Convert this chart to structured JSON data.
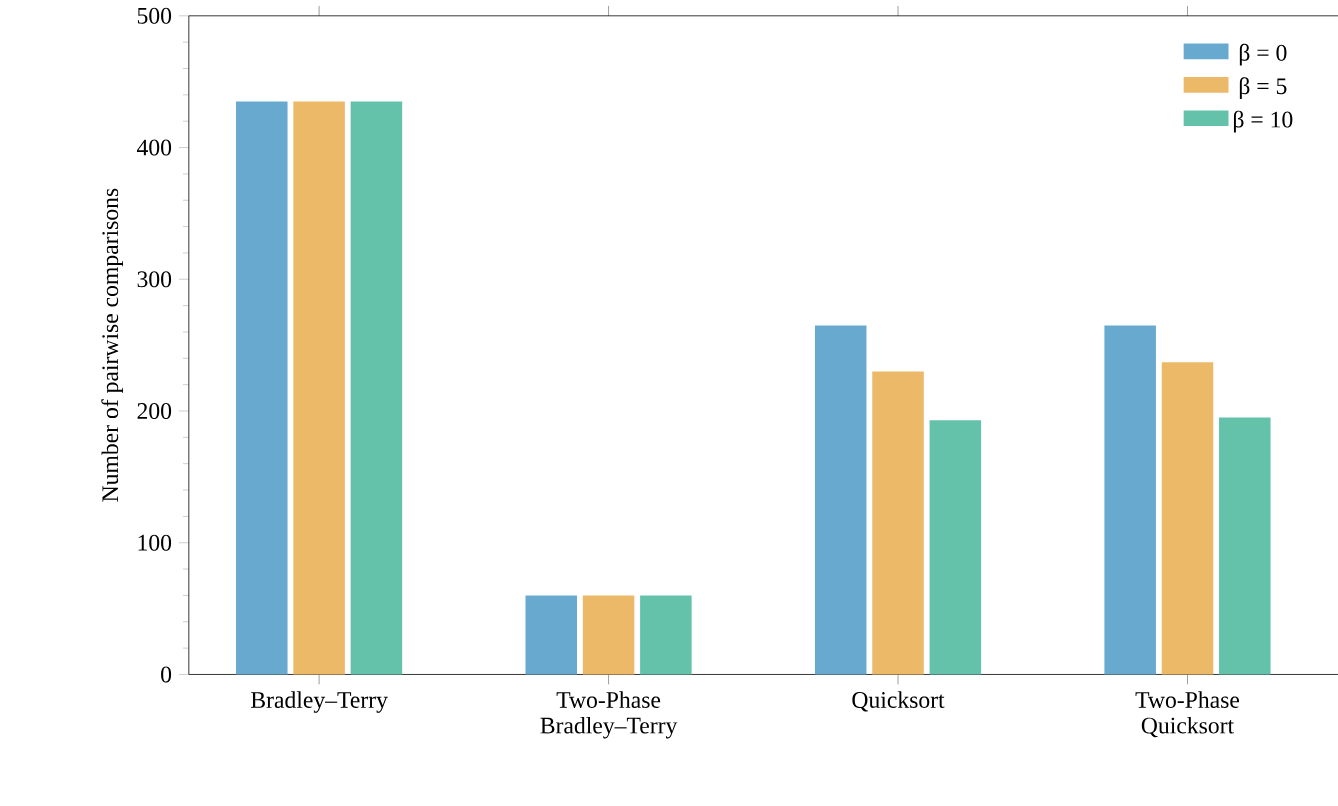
{
  "chart_data": {
    "type": "bar",
    "ylabel": "Number of pairwise comparisons",
    "categories": [
      "Bradley–Terry",
      "Two-Phase Bradley–Terry",
      "Quicksort",
      "Two-Phase Quicksort"
    ],
    "series": [
      {
        "name": "β = 0",
        "color": "#67a9cf",
        "values": [
          435,
          60,
          265,
          265
        ]
      },
      {
        "name": "β = 5",
        "color": "#ebb968",
        "values": [
          435,
          60,
          230,
          237
        ]
      },
      {
        "name": "β = 10",
        "color": "#64c2ab",
        "values": [
          435,
          60,
          193,
          195
        ]
      }
    ],
    "ylim": [
      0,
      500
    ],
    "yticks": [
      0,
      100,
      200,
      300,
      400,
      500
    ],
    "legend": "top right"
  }
}
